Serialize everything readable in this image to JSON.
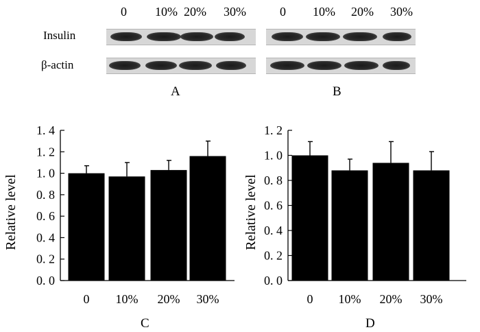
{
  "blot": {
    "lanes": [
      "0",
      "10%",
      "20%",
      "30%"
    ],
    "rows": [
      "Insulin",
      "β-actin"
    ],
    "panels": [
      "A",
      "B"
    ]
  },
  "chart_data": [
    {
      "type": "bar",
      "panel": "C",
      "categories": [
        "0",
        "10%",
        "20%",
        "30%"
      ],
      "values": [
        1.0,
        0.97,
        1.03,
        1.16
      ],
      "errors": [
        0.07,
        0.13,
        0.09,
        0.14
      ],
      "ylabel": "Relative level",
      "ylim": [
        0,
        1.4
      ],
      "yticks": [
        "0. 0",
        "0. 2",
        "0. 4",
        "0. 6",
        "0. 8",
        "1. 0",
        "1. 2",
        "1. 4"
      ],
      "bar_color": "#000000",
      "grid": false
    },
    {
      "type": "bar",
      "panel": "D",
      "categories": [
        "0",
        "10%",
        "20%",
        "30%"
      ],
      "values": [
        1.0,
        0.88,
        0.94,
        0.88
      ],
      "errors": [
        0.11,
        0.09,
        0.17,
        0.15
      ],
      "ylabel": "Relative level",
      "ylim": [
        0,
        1.2
      ],
      "yticks": [
        "0. 0",
        "0. 2",
        "0. 4",
        "0. 6",
        "0. 8",
        "1. 0",
        "1. 2"
      ],
      "bar_color": "#000000",
      "grid": false
    }
  ]
}
